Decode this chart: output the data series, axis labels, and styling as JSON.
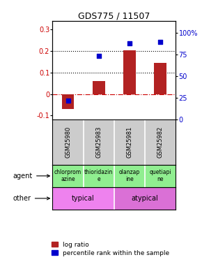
{
  "title": "GDS775 / 11507",
  "samples": [
    "GSM25980",
    "GSM25983",
    "GSM25981",
    "GSM25982"
  ],
  "log_ratio": [
    -0.07,
    0.06,
    0.205,
    0.145
  ],
  "percentile": [
    0.22,
    0.73,
    0.88,
    0.89
  ],
  "ylim_left": [
    -0.12,
    0.34
  ],
  "ylim_right": [
    0,
    1.133
  ],
  "yticks_left": [
    -0.1,
    0.0,
    0.1,
    0.2,
    0.3
  ],
  "yticks_left_labels": [
    "-0.1",
    "0",
    "0.1",
    "0.2",
    "0.3"
  ],
  "yticks_right": [
    0.0,
    0.25,
    0.5,
    0.75,
    1.0
  ],
  "yticks_right_labels": [
    "0",
    "25",
    "50",
    "75",
    "100%"
  ],
  "hlines": [
    0.1,
    0.2
  ],
  "bar_color": "#b22222",
  "dot_color": "#0000cc",
  "zero_line_color": "#cc0000",
  "agent_labels": [
    "chlorprom\nazine",
    "thioridazin\ne",
    "olanzap\nine",
    "quetiapi\nne"
  ],
  "typical_color": "#EE82EE",
  "atypical_color": "#DA70D6",
  "agent_color": "#90EE90",
  "sample_bg": "#cccccc",
  "left_label_color": "#cc0000",
  "right_label_color": "#0000cc"
}
